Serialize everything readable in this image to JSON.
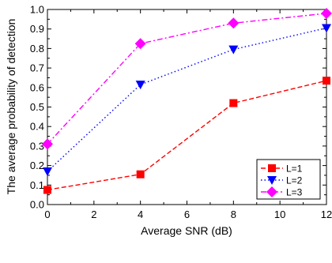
{
  "chart_data": {
    "type": "line",
    "xlabel": "Average SNR (dB)",
    "ylabel": "The average probability of detection",
    "xlim": [
      0,
      12
    ],
    "ylim": [
      0,
      1.0
    ],
    "xticks": [
      0,
      2,
      4,
      6,
      8,
      10,
      12
    ],
    "yticks": [
      0.0,
      0.1,
      0.2,
      0.3,
      0.4,
      0.5,
      0.6,
      0.7,
      0.8,
      0.9,
      1.0
    ],
    "xtick_labels": [
      "0",
      "2",
      "4",
      "6",
      "8",
      "10",
      "12"
    ],
    "ytick_labels": [
      "0.0",
      "0.1",
      "0.2",
      "0.3",
      "0.4",
      "0.5",
      "0.6",
      "0.7",
      "0.8",
      "0.9",
      "1.0"
    ],
    "grid": false,
    "legend_position": "bottom-right",
    "series": [
      {
        "name": "L=1",
        "color": "#ff0000",
        "marker": "square",
        "line": "dashed",
        "x": [
          0,
          4,
          8,
          12
        ],
        "y": [
          0.075,
          0.155,
          0.52,
          0.635
        ]
      },
      {
        "name": "L=2",
        "color": "#0000ff",
        "marker": "triangle-down",
        "line": "dotted",
        "x": [
          0,
          4,
          8,
          12
        ],
        "y": [
          0.17,
          0.615,
          0.795,
          0.905
        ]
      },
      {
        "name": "L=3",
        "color": "#ff00ff",
        "marker": "diamond",
        "line": "dashdot",
        "x": [
          0,
          4,
          8,
          12
        ],
        "y": [
          0.31,
          0.825,
          0.93,
          0.98
        ]
      }
    ]
  }
}
